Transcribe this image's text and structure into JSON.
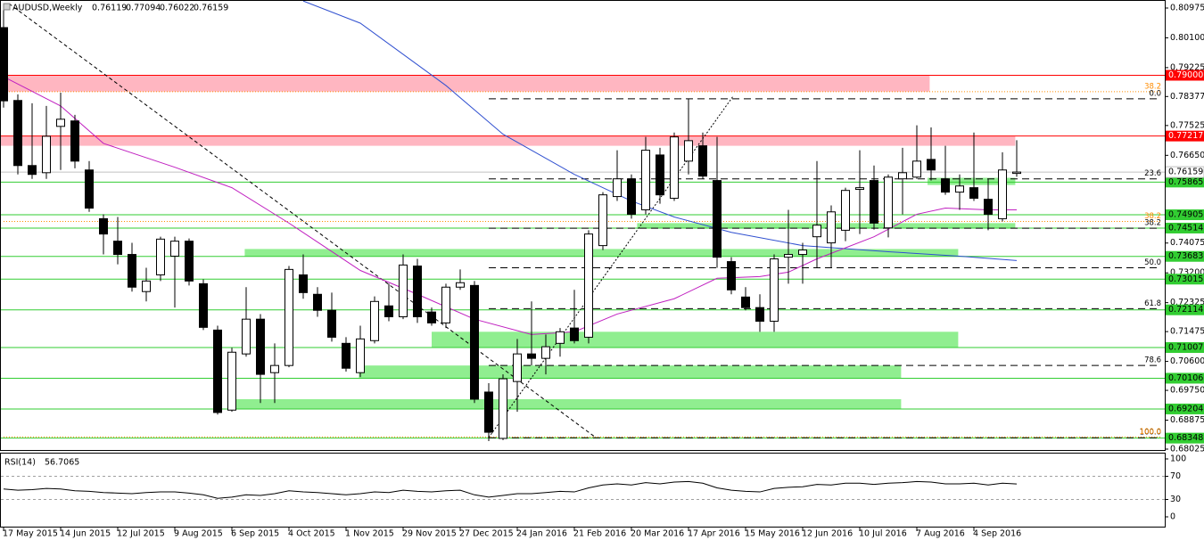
{
  "chart_data": {
    "type": "candlestick",
    "title": "AUDUSD,Weekly",
    "categories": [
      "17 May 2015",
      null,
      null,
      null,
      "14 Jun 2015",
      null,
      null,
      null,
      "12 Jul 2015",
      null,
      null,
      null,
      "9 Aug 2015",
      null,
      null,
      null,
      "6 Sep 2015",
      null,
      null,
      null,
      "4 Oct 2015",
      null,
      null,
      null,
      "1 Nov 2015",
      null,
      null,
      null,
      "29 Nov 2015",
      null,
      null,
      null,
      "27 Dec 2015",
      null,
      null,
      null,
      "24 Jan 2016",
      null,
      null,
      null,
      "21 Feb 2016",
      null,
      null,
      null,
      "20 Mar 2016",
      null,
      null,
      null,
      "17 Apr 2016",
      null,
      null,
      null,
      "15 May 2016",
      null,
      null,
      null,
      "12 Jun 2016",
      null,
      null,
      null,
      "10 Jul 2016",
      null,
      null,
      null,
      "7 Aug 2016",
      null,
      null,
      null,
      "4 Sep 2016",
      null,
      null,
      null
    ],
    "candles": {
      "open": [
        0.804,
        0.7826,
        0.7635,
        0.7614,
        0.775,
        0.7766,
        0.7622,
        0.7479,
        0.7413,
        0.7374,
        0.7265,
        0.7314,
        0.7369,
        0.7413,
        0.7288,
        0.7152,
        0.6917,
        0.7082,
        0.7184,
        0.7027,
        0.7048,
        0.7314,
        0.7257,
        0.721,
        0.7113,
        0.7027,
        0.7121,
        0.7223,
        0.7191,
        0.734,
        0.7205,
        0.7173,
        0.7278,
        0.7283,
        0.697,
        0.6834,
        0.7001,
        0.7082,
        0.7069,
        0.7113,
        0.7158,
        0.7131,
        0.74,
        0.7544,
        0.7596,
        0.7505,
        0.7666,
        0.7539,
        0.7648,
        0.7693,
        0.7591,
        0.7353,
        0.7249,
        0.7218,
        0.7178,
        0.7366,
        0.7374,
        0.7426,
        0.7408,
        0.7445,
        0.7565,
        0.7591,
        0.7452,
        0.7596,
        0.7601,
        0.7653,
        0.7596,
        0.7557,
        0.757,
        0.7536,
        0.7479,
        0.76119
      ],
      "high": [
        0.8105,
        0.7844,
        0.7818,
        0.781,
        0.7849,
        0.7784,
        0.7648,
        0.7492,
        0.7484,
        0.7408,
        0.7335,
        0.7426,
        0.7426,
        0.7421,
        0.7301,
        0.7165,
        0.71,
        0.7278,
        0.7199,
        0.7113,
        0.734,
        0.7374,
        0.7278,
        0.7262,
        0.7131,
        0.7165,
        0.7251,
        0.7288,
        0.7374,
        0.7361,
        0.7218,
        0.7288,
        0.733,
        0.7296,
        0.6996,
        0.7022,
        0.7126,
        0.7236,
        0.7139,
        0.7158,
        0.727,
        0.7445,
        0.7557,
        0.768,
        0.7609,
        0.7719,
        0.7687,
        0.7732,
        0.7831,
        0.7732,
        0.7719,
        0.7366,
        0.7278,
        0.7257,
        0.7374,
        0.7505,
        0.7408,
        0.7648,
        0.7518,
        0.757,
        0.768,
        0.7635,
        0.7609,
        0.7687,
        0.7753,
        0.7747,
        0.7693,
        0.7609,
        0.7732,
        0.7596,
        0.7674,
        0.77094
      ],
      "low": [
        0.7805,
        0.7609,
        0.7596,
        0.7596,
        0.7622,
        0.7627,
        0.7499,
        0.7374,
        0.7345,
        0.7265,
        0.7236,
        0.7296,
        0.7218,
        0.7283,
        0.7152,
        0.6904,
        0.6912,
        0.7074,
        0.6938,
        0.6938,
        0.7043,
        0.7244,
        0.7191,
        0.7118,
        0.703,
        0.7014,
        0.7113,
        0.7178,
        0.7184,
        0.7173,
        0.7165,
        0.7158,
        0.727,
        0.6938,
        0.6826,
        0.6829,
        0.6912,
        0.7048,
        0.7022,
        0.7074,
        0.7113,
        0.7113,
        0.7387,
        0.7531,
        0.7479,
        0.7492,
        0.7523,
        0.7531,
        0.7609,
        0.7596,
        0.7335,
        0.7257,
        0.721,
        0.7147,
        0.7147,
        0.7288,
        0.7288,
        0.7335,
        0.7335,
        0.7413,
        0.7434,
        0.7447,
        0.7424,
        0.7492,
        0.7596,
        0.7591,
        0.7549,
        0.7505,
        0.7531,
        0.7445,
        0.7471,
        0.76022
      ],
      "close": [
        0.7825,
        0.7635,
        0.7609,
        0.7721,
        0.7771,
        0.7648,
        0.751,
        0.7434,
        0.7374,
        0.7278,
        0.7296,
        0.7419,
        0.7413,
        0.7296,
        0.716,
        0.691,
        0.7087,
        0.7184,
        0.7022,
        0.7048,
        0.733,
        0.7262,
        0.721,
        0.7131,
        0.704,
        0.7126,
        0.7236,
        0.7191,
        0.7343,
        0.7191,
        0.7173,
        0.7278,
        0.7291,
        0.6949,
        0.6852,
        0.7009,
        0.7082,
        0.7069,
        0.7103,
        0.7147,
        0.7121,
        0.7434,
        0.7549,
        0.7596,
        0.7492,
        0.768,
        0.7549,
        0.7719,
        0.7708,
        0.7604,
        0.7366,
        0.727,
        0.7218,
        0.7178,
        0.7361,
        0.7374,
        0.7387,
        0.746,
        0.7499,
        0.7562,
        0.757,
        0.7466,
        0.7601,
        0.7614,
        0.7648,
        0.7622,
        0.7557,
        0.7575,
        0.7539,
        0.7492,
        0.7622,
        0.76159
      ],
      "up_color": "#ffffff",
      "down_color": "#000000",
      "outline": "#000000"
    },
    "ylim": [
      0.67999,
      0.81184
    ],
    "yticks": [
      {
        "value": 0.80975,
        "label": "0.80975"
      },
      {
        "value": 0.801,
        "label": "0.80100"
      },
      {
        "value": 0.79225,
        "label": "0.79225"
      },
      {
        "value": 0.78377,
        "label": "0.78377"
      },
      {
        "value": 0.77525,
        "label": "0.77525"
      },
      {
        "value": 0.7665,
        "label": "0.76650"
      },
      {
        "value": 0.74075,
        "label": "0.74075"
      },
      {
        "value": 0.732,
        "label": "0.73200"
      },
      {
        "value": 0.72325,
        "label": "0.72325"
      },
      {
        "value": 0.71475,
        "label": "0.71475"
      },
      {
        "value": 0.706,
        "label": "0.70600"
      },
      {
        "value": 0.6975,
        "label": "0.69750"
      },
      {
        "value": 0.68875,
        "label": "0.68875"
      },
      {
        "value": 0.68025,
        "label": "0.68025"
      }
    ],
    "zones": [
      {
        "from": 0.7852,
        "to": 0.79,
        "start": -0.25,
        "end": 64.9,
        "color": "#ffb6c1"
      },
      {
        "from": 0.7693,
        "to": 0.77217,
        "start": -0.25,
        "end": 70.9,
        "color": "#ffb6c1"
      },
      {
        "from": 0.73683,
        "to": 0.739,
        "start": 16.9,
        "end": 66.9,
        "color": "#90ee90"
      },
      {
        "from": 0.71007,
        "to": 0.7147,
        "start": 30,
        "end": 66.9,
        "color": "#90ee90"
      },
      {
        "from": 0.70106,
        "to": 0.7048,
        "start": 24.9,
        "end": 62.9,
        "color": "#90ee90"
      },
      {
        "from": 0.69204,
        "to": 0.6949,
        "start": 16.3,
        "end": 62.9,
        "color": "#90ee90"
      },
      {
        "from": 0.74514,
        "to": 0.7466,
        "start": 44.4,
        "end": 70.9,
        "color": "#90ee90"
      },
      {
        "from": 0.7578,
        "to": 0.7599,
        "start": 64.75,
        "end": 70.9,
        "color": "#90ee90"
      }
    ],
    "levels": [
      {
        "value": 0.79,
        "label": "0.79000",
        "color": "#ff0000",
        "label_color": "#ffffff"
      },
      {
        "value": 0.77217,
        "label": "0.77217",
        "color": "#ff0000",
        "label_color": "#ffffff"
      },
      {
        "value": 0.75865,
        "label": "0.75865",
        "color": "#32cd32",
        "label_color": "#000000"
      },
      {
        "value": 0.74905,
        "label": "0.74905",
        "color": "#32cd32",
        "label_color": "#000000"
      },
      {
        "value": 0.74514,
        "label": "0.74514",
        "color": "#32cd32",
        "label_color": "#000000"
      },
      {
        "value": 0.73683,
        "label": "0.73683",
        "color": "#32cd32",
        "label_color": "#000000"
      },
      {
        "value": 0.73015,
        "label": "0.73015",
        "color": "#32cd32",
        "label_color": "#000000"
      },
      {
        "value": 0.72114,
        "label": "0.72114",
        "color": "#32cd32",
        "label_color": "#000000"
      },
      {
        "value": 0.71007,
        "label": "0.71007",
        "color": "#32cd32",
        "label_color": "#000000"
      },
      {
        "value": 0.70106,
        "label": "0.70106",
        "color": "#32cd32",
        "label_color": "#000000"
      },
      {
        "value": 0.69204,
        "label": "0.69204",
        "color": "#32cd32",
        "label_color": "#000000"
      },
      {
        "value": 0.68348,
        "label": "0.68348",
        "color": "#32cd32",
        "label_color": "#000000"
      }
    ],
    "fibs": [
      {
        "color": "#000000",
        "dash": "8 5",
        "start": 34,
        "levels": [
          {
            "label": "0.0",
            "value": 0.7831
          },
          {
            "label": "23.6",
            "value": 0.7596
          },
          {
            "label": "38.2",
            "value": 0.7451
          },
          {
            "label": "50.0",
            "value": 0.7335
          },
          {
            "label": "61.8",
            "value": 0.7215
          },
          {
            "label": "78.6",
            "value": 0.7048
          },
          {
            "label": "100.0",
            "value": 0.6836
          }
        ]
      },
      {
        "color": "#ff8c00",
        "dash": "1 2",
        "start": 0,
        "levels": [
          {
            "label": "38.2",
            "value": 0.7852
          },
          {
            "label": "38.2",
            "value": 0.7471
          },
          {
            "label": "100.0",
            "value": 0.6838
          }
        ]
      }
    ],
    "moving_averages": [
      {
        "color": "#3050d0",
        "x": [
          21,
          25,
          31,
          35,
          40,
          44,
          47,
          51,
          56,
          62,
          67,
          71
        ],
        "values": [
          0.8118,
          0.8053,
          0.787,
          0.7727,
          0.7609,
          0.7531,
          0.7484,
          0.7439,
          0.74,
          0.7382,
          0.7369,
          0.7356
        ]
      },
      {
        "color": "#c020c0",
        "x": [
          0,
          4,
          7,
          12,
          16,
          20,
          25,
          29,
          33,
          37,
          40,
          43,
          47,
          50,
          53,
          55,
          57,
          61,
          64,
          66,
          69,
          71
        ],
        "values": [
          0.7896,
          0.781,
          0.77,
          0.763,
          0.757,
          0.7466,
          0.7327,
          0.7257,
          0.7184,
          0.7139,
          0.7147,
          0.7199,
          0.7244,
          0.7304,
          0.7309,
          0.7322,
          0.7361,
          0.7426,
          0.7492,
          0.751,
          0.7505,
          0.7505
        ]
      }
    ],
    "rsi": {
      "title": "RSI(14)",
      "values": [
        48,
        46,
        47,
        49,
        48,
        45,
        44,
        42,
        41,
        40,
        42,
        43,
        43,
        41,
        38,
        32,
        34,
        38,
        37,
        40,
        45,
        43,
        42,
        40,
        38,
        40,
        43,
        42,
        46,
        44,
        43,
        45,
        46,
        38,
        34,
        37,
        40,
        40,
        42,
        44,
        43,
        50,
        55,
        57,
        55,
        59,
        57,
        60,
        61,
        58,
        50,
        46,
        44,
        43,
        49,
        51,
        52,
        56,
        55,
        58,
        58,
        56,
        58,
        59,
        61,
        60,
        57,
        57,
        58,
        55,
        58,
        56.7065
      ],
      "ylim": [
        0,
        100
      ],
      "yticks": [
        100,
        70,
        30,
        0
      ],
      "color": "#000000"
    }
  }
}
